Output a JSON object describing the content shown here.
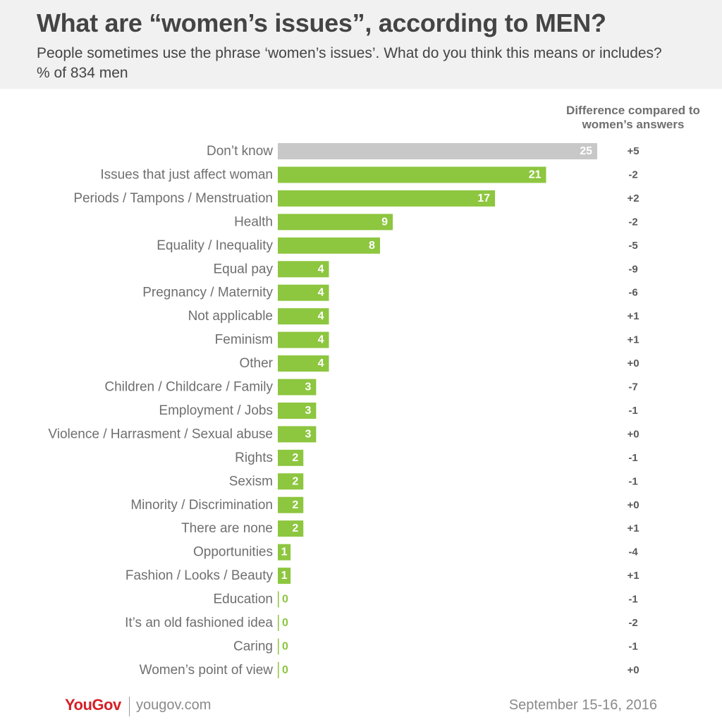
{
  "title": "What are “women’s issues”, according to MEN?",
  "subtitle": "People sometimes use the phrase ‘women’s issues’. What do you think this means or includes? % of 834 men",
  "diff_header": "Difference compared to women’s answers",
  "colors": {
    "bar": "#8dc63f",
    "bar_dont_know": "#c8c8c8",
    "header_bg": "#f1f1f1",
    "text": "#444444",
    "brand": "#d62026"
  },
  "chart_data": {
    "type": "bar",
    "orientation": "horizontal",
    "title": "What are “women’s issues”, according to MEN?",
    "categories": [
      "Don’t know",
      "Issues that just affect woman",
      "Periods / Tampons / Menstruation",
      "Health",
      "Equality / Inequality",
      "Equal pay",
      "Pregnancy / Maternity",
      "Not applicable",
      "Feminism",
      "Other",
      "Children / Childcare / Family",
      "Employment / Jobs",
      "Violence / Harrasment / Sexual abuse",
      "Rights",
      "Sexism",
      "Minority / Discrimination",
      "There are none",
      "Opportunities",
      "Fashion / Looks / Beauty",
      "Education",
      "It’s an old fashioned idea",
      "Caring",
      "Women’s point of view"
    ],
    "values": [
      25,
      21,
      17,
      9,
      8,
      4,
      4,
      4,
      4,
      4,
      3,
      3,
      3,
      2,
      2,
      2,
      2,
      1,
      1,
      0,
      0,
      0,
      0
    ],
    "differences": [
      "+5",
      "-2",
      "+2",
      "-2",
      "-5",
      "-9",
      "-6",
      "+1",
      "+1",
      "+0",
      "-7",
      "-1",
      "+0",
      "-1",
      "-1",
      "+0",
      "+1",
      "-4",
      "+1",
      "-1",
      "-2",
      "-1",
      "+0"
    ],
    "xlim": [
      0,
      25
    ],
    "grid": false,
    "legend": false
  },
  "footer": {
    "logo": "YouGov",
    "url": "yougov.com",
    "date": "September 15-16, 2016"
  }
}
